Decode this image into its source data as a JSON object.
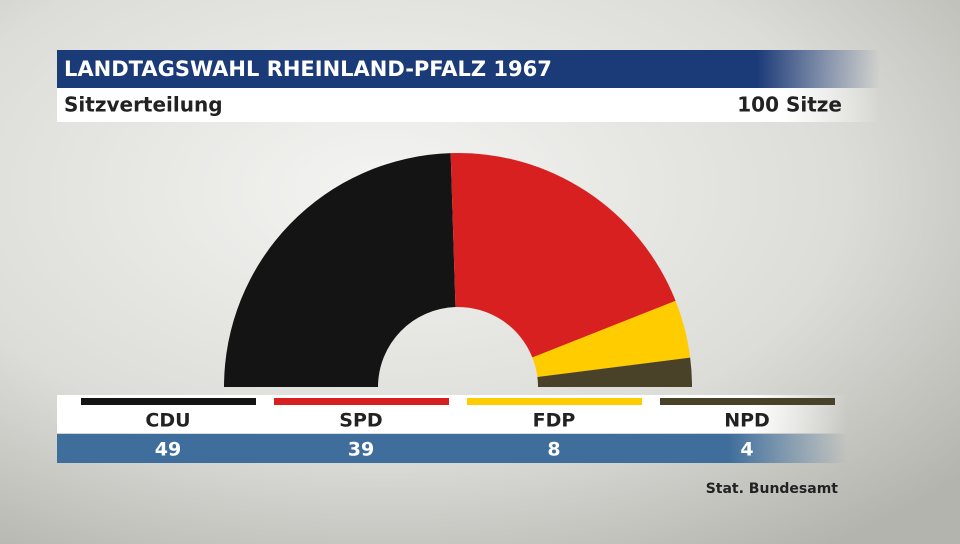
{
  "chart_data": {
    "type": "parliament",
    "title": "LANDTAGSWAHL RHEINLAND-PFALZ 1967",
    "subtitle": "Sitzverteilung",
    "total_label": "100 Sitze",
    "categories": [
      "CDU",
      "SPD",
      "FDP",
      "NPD"
    ],
    "values": [
      49,
      39,
      8,
      4
    ],
    "colors": [
      "#141414",
      "#d92020",
      "#ffcc00",
      "#4a4129"
    ],
    "source": "Stat. Bundesamt"
  }
}
